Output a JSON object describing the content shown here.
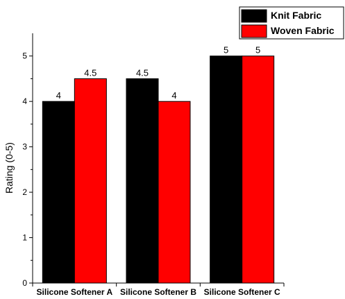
{
  "chart_data": {
    "type": "bar",
    "categories": [
      "Silicone Softener A",
      "Silicone Softener B",
      "Silicone Softener C"
    ],
    "series": [
      {
        "name": "Knit Fabric",
        "values": [
          4,
          4.5,
          5
        ],
        "labels": [
          "4",
          "4.5",
          "5"
        ],
        "color": "#000000"
      },
      {
        "name": "Woven Fabric",
        "values": [
          4.5,
          4,
          5
        ],
        "labels": [
          "4.5",
          "4",
          "5"
        ],
        "color": "#ff0000"
      }
    ],
    "ylabel": "Rating (0-5)",
    "xlabel": "",
    "ylim": [
      0,
      5.5
    ],
    "yticks": [
      "0",
      "1",
      "2",
      "3",
      "4",
      "5"
    ],
    "legend_position": "top-right",
    "grid": false
  }
}
